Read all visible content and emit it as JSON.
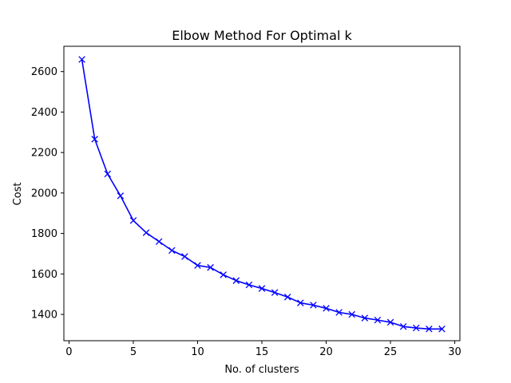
{
  "chart_data": {
    "type": "line",
    "title": "Elbow Method For Optimal k",
    "xlabel": "No. of clusters",
    "ylabel": "Cost",
    "xlim": [
      -0.4,
      30.4
    ],
    "ylim": [
      1270,
      2725
    ],
    "xticks": [
      0,
      5,
      10,
      15,
      20,
      25,
      30
    ],
    "yticks": [
      1400,
      1600,
      1800,
      2000,
      2200,
      2400,
      2600
    ],
    "grid": false,
    "legend": "none",
    "series": [
      {
        "color": "#0000ff",
        "marker": "x",
        "x": [
          1,
          2,
          3,
          4,
          5,
          6,
          7,
          8,
          9,
          10,
          11,
          12,
          13,
          14,
          15,
          16,
          17,
          18,
          19,
          20,
          21,
          22,
          23,
          24,
          25,
          26,
          27,
          28,
          29
        ],
        "y": [
          2660,
          2266,
          2094,
          1986,
          1864,
          1804,
          1760,
          1716,
          1686,
          1642,
          1632,
          1596,
          1567,
          1546,
          1528,
          1508,
          1486,
          1457,
          1446,
          1430,
          1410,
          1400,
          1382,
          1372,
          1361,
          1340,
          1333,
          1328,
          1328
        ]
      }
    ]
  }
}
